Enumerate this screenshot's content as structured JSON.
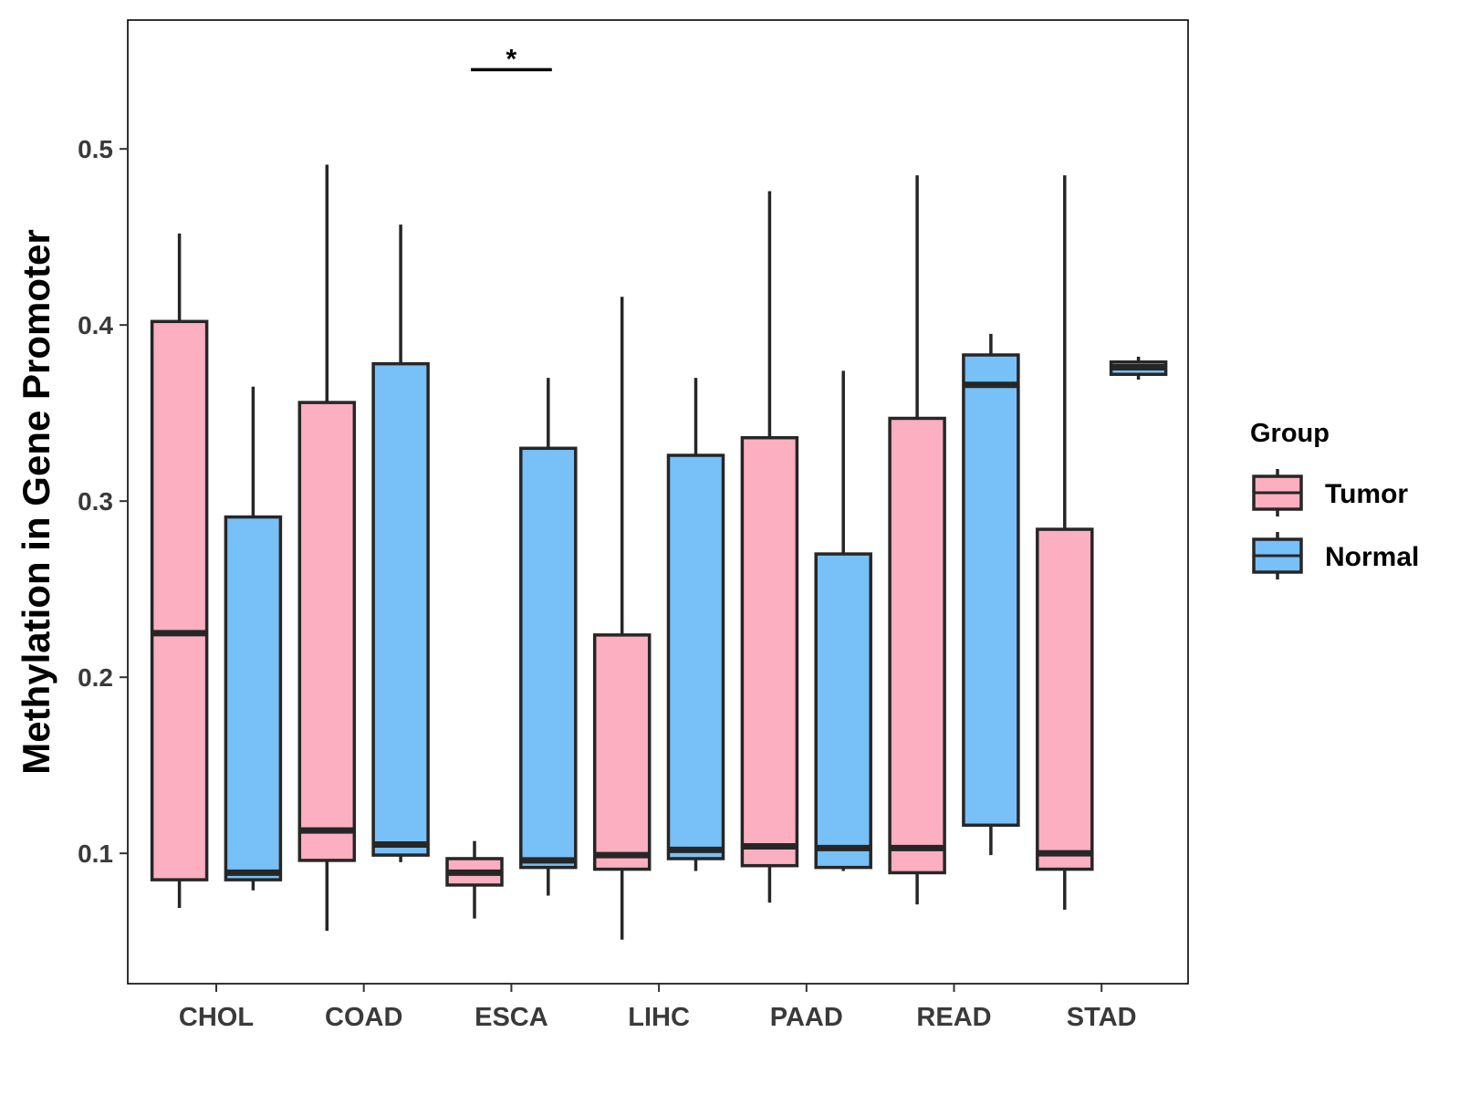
{
  "chart_data": {
    "type": "boxplot",
    "title": "",
    "xlabel": "",
    "ylabel": "Methylation in Gene Promoter",
    "ylim": [
      0.026,
      0.572
    ],
    "yticks": [
      0.1,
      0.2,
      0.3,
      0.4,
      0.5
    ],
    "ytick_labels": [
      "0.1",
      "0.2",
      "0.3",
      "0.4",
      "0.5"
    ],
    "categories": [
      "CHOL",
      "COAD",
      "ESCA",
      "LIHC",
      "PAAD",
      "READ",
      "STAD"
    ],
    "legend": {
      "title": "Group",
      "position": "right",
      "items": [
        {
          "name": "Tumor",
          "color": "#FBAFC0"
        },
        {
          "name": "Normal",
          "color": "#77C0F8"
        }
      ]
    },
    "series": [
      {
        "name": "Tumor",
        "color": "#FBAFC0",
        "boxes": [
          {
            "category": "CHOL",
            "min": 0.069,
            "q1": 0.085,
            "median": 0.225,
            "q3": 0.402,
            "max": 0.452
          },
          {
            "category": "COAD",
            "min": 0.056,
            "q1": 0.096,
            "median": 0.113,
            "q3": 0.356,
            "max": 0.491
          },
          {
            "category": "ESCA",
            "min": 0.063,
            "q1": 0.082,
            "median": 0.089,
            "q3": 0.097,
            "max": 0.107
          },
          {
            "category": "LIHC",
            "min": 0.051,
            "q1": 0.091,
            "median": 0.099,
            "q3": 0.224,
            "max": 0.416
          },
          {
            "category": "PAAD",
            "min": 0.072,
            "q1": 0.093,
            "median": 0.104,
            "q3": 0.336,
            "max": 0.476
          },
          {
            "category": "READ",
            "min": 0.071,
            "q1": 0.089,
            "median": 0.103,
            "q3": 0.347,
            "max": 0.485
          },
          {
            "category": "STAD",
            "min": 0.068,
            "q1": 0.091,
            "median": 0.1,
            "q3": 0.284,
            "max": 0.485
          }
        ]
      },
      {
        "name": "Normal",
        "color": "#77C0F8",
        "boxes": [
          {
            "category": "CHOL",
            "min": 0.079,
            "q1": 0.085,
            "median": 0.089,
            "q3": 0.291,
            "max": 0.365
          },
          {
            "category": "COAD",
            "min": 0.095,
            "q1": 0.099,
            "median": 0.105,
            "q3": 0.378,
            "max": 0.457
          },
          {
            "category": "ESCA",
            "min": 0.076,
            "q1": 0.092,
            "median": 0.096,
            "q3": 0.33,
            "max": 0.37
          },
          {
            "category": "LIHC",
            "min": 0.09,
            "q1": 0.097,
            "median": 0.102,
            "q3": 0.326,
            "max": 0.37
          },
          {
            "category": "PAAD",
            "min": 0.09,
            "q1": 0.092,
            "median": 0.103,
            "q3": 0.27,
            "max": 0.374
          },
          {
            "category": "READ",
            "min": 0.099,
            "q1": 0.116,
            "median": 0.366,
            "q3": 0.383,
            "max": 0.395
          },
          {
            "category": "STAD",
            "min": 0.369,
            "q1": 0.372,
            "median": 0.376,
            "q3": 0.379,
            "max": 0.382
          }
        ]
      }
    ],
    "annotations": [
      {
        "type": "significance",
        "category": "ESCA",
        "text": "*",
        "y": 0.545
      }
    ]
  }
}
